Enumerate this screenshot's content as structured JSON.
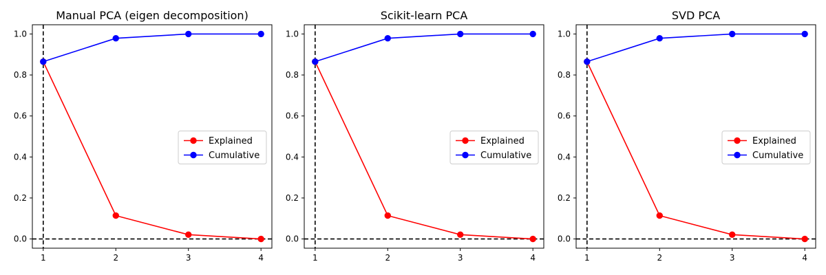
{
  "chart_data": [
    {
      "type": "line",
      "title": "Manual PCA (eigen decomposition)",
      "xlabel": "",
      "ylabel": "",
      "x": [
        1,
        2,
        3,
        4
      ],
      "xlim": [
        0.85,
        4.15
      ],
      "ylim": [
        -0.045,
        1.045
      ],
      "xticks": [
        1,
        2,
        3,
        4
      ],
      "yticks": [
        0.0,
        0.2,
        0.4,
        0.6,
        0.8,
        1.0
      ],
      "ytick_labels": [
        "0.0",
        "0.2",
        "0.4",
        "0.6",
        "0.8",
        "1.0"
      ],
      "grid": false,
      "legend_position": "center-right",
      "reference_lines": [
        {
          "orientation": "vertical",
          "value": 1,
          "style": "dashed",
          "color": "#000000"
        },
        {
          "orientation": "horizontal",
          "value": 0,
          "style": "dashed",
          "color": "#000000"
        }
      ],
      "series": [
        {
          "name": "Explained",
          "color": "#ff0000",
          "values": [
            0.865,
            0.114,
            0.021,
            0.0
          ]
        },
        {
          "name": "Cumulative",
          "color": "#0000ff",
          "values": [
            0.865,
            0.979,
            1.0,
            1.0
          ]
        }
      ]
    },
    {
      "type": "line",
      "title": "Scikit-learn PCA",
      "xlabel": "",
      "ylabel": "",
      "x": [
        1,
        2,
        3,
        4
      ],
      "xlim": [
        0.85,
        4.15
      ],
      "ylim": [
        -0.045,
        1.045
      ],
      "xticks": [
        1,
        2,
        3,
        4
      ],
      "yticks": [
        0.0,
        0.2,
        0.4,
        0.6,
        0.8,
        1.0
      ],
      "ytick_labels": [
        "0.0",
        "0.2",
        "0.4",
        "0.6",
        "0.8",
        "1.0"
      ],
      "grid": false,
      "legend_position": "center-right",
      "reference_lines": [
        {
          "orientation": "vertical",
          "value": 1,
          "style": "dashed",
          "color": "#000000"
        },
        {
          "orientation": "horizontal",
          "value": 0,
          "style": "dashed",
          "color": "#000000"
        }
      ],
      "series": [
        {
          "name": "Explained",
          "color": "#ff0000",
          "values": [
            0.865,
            0.114,
            0.021,
            0.0
          ]
        },
        {
          "name": "Cumulative",
          "color": "#0000ff",
          "values": [
            0.865,
            0.979,
            1.0,
            1.0
          ]
        }
      ]
    },
    {
      "type": "line",
      "title": "SVD PCA",
      "xlabel": "",
      "ylabel": "",
      "x": [
        1,
        2,
        3,
        4
      ],
      "xlim": [
        0.85,
        4.15
      ],
      "ylim": [
        -0.045,
        1.045
      ],
      "xticks": [
        1,
        2,
        3,
        4
      ],
      "yticks": [
        0.0,
        0.2,
        0.4,
        0.6,
        0.8,
        1.0
      ],
      "ytick_labels": [
        "0.0",
        "0.2",
        "0.4",
        "0.6",
        "0.8",
        "1.0"
      ],
      "grid": false,
      "legend_position": "center-right",
      "reference_lines": [
        {
          "orientation": "vertical",
          "value": 1,
          "style": "dashed",
          "color": "#000000"
        },
        {
          "orientation": "horizontal",
          "value": 0,
          "style": "dashed",
          "color": "#000000"
        }
      ],
      "series": [
        {
          "name": "Explained",
          "color": "#ff0000",
          "values": [
            0.865,
            0.114,
            0.021,
            0.0
          ]
        },
        {
          "name": "Cumulative",
          "color": "#0000ff",
          "values": [
            0.865,
            0.979,
            1.0,
            1.0
          ]
        }
      ]
    }
  ]
}
